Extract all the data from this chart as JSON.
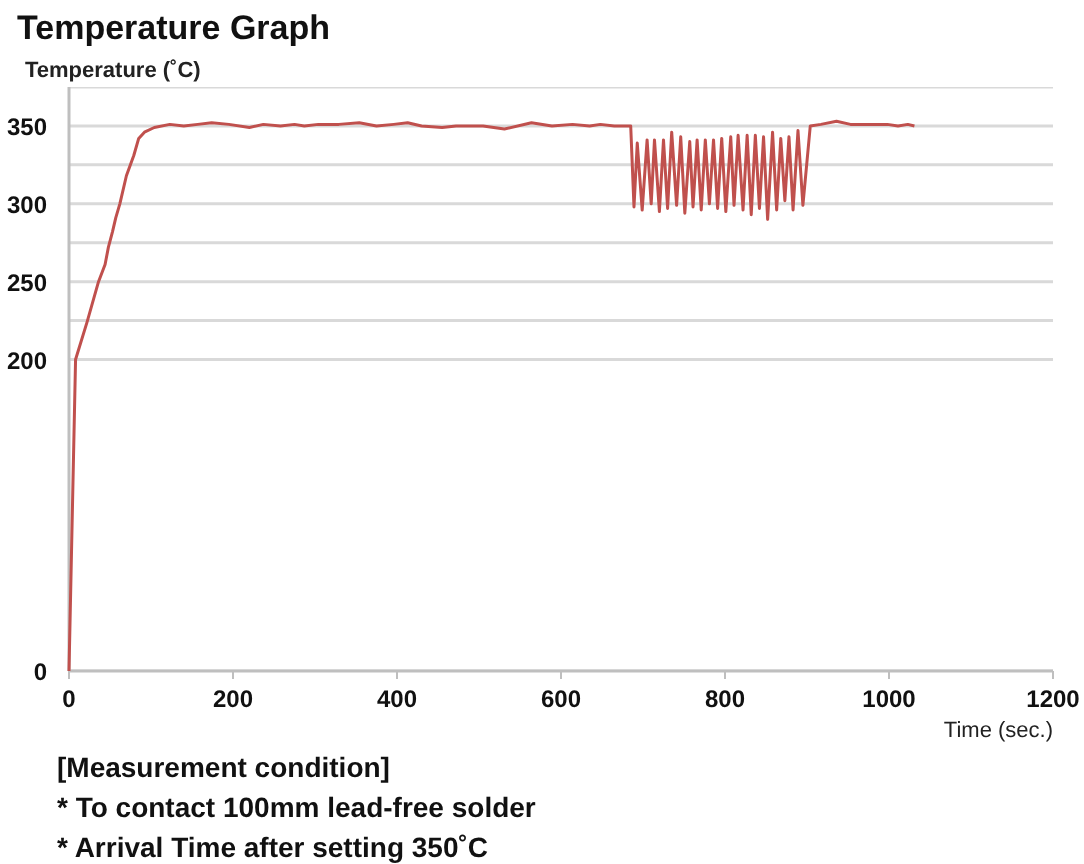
{
  "chart_data": {
    "type": "line",
    "title": "Temperature Graph",
    "ylabel": "Temperature (˚C)",
    "xlabel": "Time (sec.)",
    "annotations": [
      "[Measurement condition]",
      "* To contact 100mm lead-free solder",
      "* Arrival Time after setting 350˚C"
    ],
    "x": [
      0,
      8,
      22,
      36,
      44,
      48,
      53,
      57,
      62,
      70,
      79,
      85,
      92,
      104,
      123,
      140,
      157,
      174,
      195,
      220,
      237,
      258,
      275,
      287,
      304,
      329,
      354,
      375,
      396,
      413,
      430,
      455,
      472,
      505,
      531,
      564,
      589,
      614,
      635,
      648,
      665,
      685,
      689,
      693,
      699,
      705,
      710,
      714,
      720,
      725,
      730,
      735,
      741,
      746,
      751,
      757,
      761,
      766,
      771,
      776,
      781,
      786,
      791,
      796,
      801,
      807,
      811,
      816,
      822,
      827,
      832,
      837,
      842,
      847,
      852,
      858,
      863,
      868,
      873,
      878,
      883,
      889,
      895,
      904,
      917,
      936,
      953,
      970,
      998,
      1011,
      1023,
      1031
    ],
    "values": [
      0,
      200,
      224,
      250,
      261,
      272,
      282,
      291,
      300,
      318,
      331,
      342,
      346,
      349,
      351,
      350,
      351,
      352,
      351,
      349,
      351,
      350,
      351,
      350,
      351,
      351,
      352,
      350,
      351,
      352,
      350,
      349,
      350,
      350,
      348,
      352,
      350,
      351,
      350,
      351,
      350,
      350,
      298,
      339,
      296,
      341,
      300,
      341,
      295,
      341,
      297,
      346,
      299,
      343,
      294,
      340,
      298,
      341,
      296,
      341,
      300,
      341,
      297,
      342,
      295,
      343,
      299,
      344,
      296,
      344,
      293,
      344,
      297,
      343,
      290,
      346,
      296,
      342,
      302,
      343,
      296,
      347,
      299,
      350,
      351,
      353,
      351,
      351,
      351,
      350,
      351,
      350
    ],
    "color": "#c0504d",
    "xlim": [
      0,
      1200
    ],
    "ylim": [
      0,
      375
    ],
    "xticks": [
      0,
      200,
      400,
      600,
      800,
      1000,
      1200
    ],
    "yticks": [
      0,
      200,
      {
        "value": 225,
        "label": null
      },
      250,
      {
        "value": 275,
        "label": null
      },
      300,
      {
        "value": 325,
        "label": null
      },
      350,
      {
        "value": 375,
        "label": null
      }
    ],
    "grid": "y"
  }
}
